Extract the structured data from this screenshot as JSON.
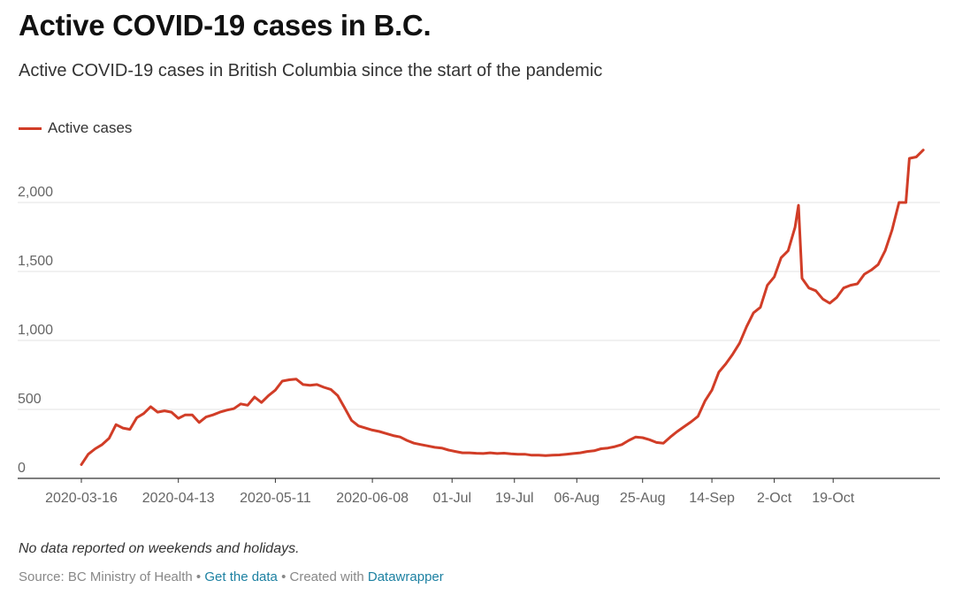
{
  "title": "Active COVID-19 cases in B.C.",
  "subtitle": "Active COVID-19 cases in British Columbia since the start of the pandemic",
  "legend_label": "Active cases",
  "note": "No data reported on weekends and holidays.",
  "source": {
    "prefix": "Source: BC Ministry of Health",
    "sep1": " • ",
    "get_data": "Get the data",
    "sep2": " • Created with ",
    "datawrapper": "Datawrapper"
  },
  "colors": {
    "line": "#d13d27",
    "link": "#1d81a2"
  },
  "chart_data": {
    "type": "line",
    "series": [
      {
        "name": "Active cases",
        "points": [
          [
            "2020-03-16",
            100
          ],
          [
            "2020-03-18",
            175
          ],
          [
            "2020-03-20",
            215
          ],
          [
            "2020-03-22",
            245
          ],
          [
            "2020-03-24",
            290
          ],
          [
            "2020-03-26",
            390
          ],
          [
            "2020-03-28",
            365
          ],
          [
            "2020-03-30",
            355
          ],
          [
            "2020-04-01",
            440
          ],
          [
            "2020-04-03",
            470
          ],
          [
            "2020-04-05",
            520
          ],
          [
            "2020-04-07",
            480
          ],
          [
            "2020-04-09",
            490
          ],
          [
            "2020-04-11",
            480
          ],
          [
            "2020-04-13",
            435
          ],
          [
            "2020-04-15",
            460
          ],
          [
            "2020-04-17",
            460
          ],
          [
            "2020-04-19",
            405
          ],
          [
            "2020-04-21",
            445
          ],
          [
            "2020-04-23",
            460
          ],
          [
            "2020-04-25",
            480
          ],
          [
            "2020-04-27",
            495
          ],
          [
            "2020-04-29",
            505
          ],
          [
            "2020-05-01",
            540
          ],
          [
            "2020-05-03",
            530
          ],
          [
            "2020-05-05",
            590
          ],
          [
            "2020-05-07",
            550
          ],
          [
            "2020-05-09",
            600
          ],
          [
            "2020-05-11",
            640
          ],
          [
            "2020-05-13",
            705
          ],
          [
            "2020-05-15",
            715
          ],
          [
            "2020-05-17",
            720
          ],
          [
            "2020-05-19",
            680
          ],
          [
            "2020-05-21",
            675
          ],
          [
            "2020-05-23",
            680
          ],
          [
            "2020-05-25",
            660
          ],
          [
            "2020-05-27",
            645
          ],
          [
            "2020-05-29",
            600
          ],
          [
            "2020-05-31",
            510
          ],
          [
            "2020-06-02",
            420
          ],
          [
            "2020-06-04",
            380
          ],
          [
            "2020-06-06",
            365
          ],
          [
            "2020-06-08",
            350
          ],
          [
            "2020-06-10",
            340
          ],
          [
            "2020-06-12",
            325
          ],
          [
            "2020-06-14",
            310
          ],
          [
            "2020-06-16",
            300
          ],
          [
            "2020-06-18",
            275
          ],
          [
            "2020-06-20",
            255
          ],
          [
            "2020-06-22",
            245
          ],
          [
            "2020-06-24",
            235
          ],
          [
            "2020-06-26",
            225
          ],
          [
            "2020-06-28",
            220
          ],
          [
            "2020-06-30",
            205
          ],
          [
            "2020-07-02",
            195
          ],
          [
            "2020-07-04",
            185
          ],
          [
            "2020-07-06",
            185
          ],
          [
            "2020-07-08",
            182
          ],
          [
            "2020-07-10",
            180
          ],
          [
            "2020-07-12",
            185
          ],
          [
            "2020-07-14",
            180
          ],
          [
            "2020-07-16",
            183
          ],
          [
            "2020-07-18",
            178
          ],
          [
            "2020-07-20",
            175
          ],
          [
            "2020-07-22",
            175
          ],
          [
            "2020-07-24",
            168
          ],
          [
            "2020-07-26",
            168
          ],
          [
            "2020-07-28",
            165
          ],
          [
            "2020-07-30",
            168
          ],
          [
            "2020-08-01",
            170
          ],
          [
            "2020-08-03",
            175
          ],
          [
            "2020-08-05",
            180
          ],
          [
            "2020-08-07",
            185
          ],
          [
            "2020-08-09",
            195
          ],
          [
            "2020-08-11",
            200
          ],
          [
            "2020-08-13",
            215
          ],
          [
            "2020-08-15",
            220
          ],
          [
            "2020-08-17",
            230
          ],
          [
            "2020-08-19",
            245
          ],
          [
            "2020-08-21",
            275
          ],
          [
            "2020-08-23",
            300
          ],
          [
            "2020-08-25",
            295
          ],
          [
            "2020-08-27",
            280
          ],
          [
            "2020-08-29",
            260
          ],
          [
            "2020-08-31",
            255
          ],
          [
            "2020-09-02",
            300
          ],
          [
            "2020-09-04",
            340
          ],
          [
            "2020-09-06",
            375
          ],
          [
            "2020-09-08",
            410
          ],
          [
            "2020-09-10",
            450
          ],
          [
            "2020-09-12",
            560
          ],
          [
            "2020-09-14",
            640
          ],
          [
            "2020-09-16",
            770
          ],
          [
            "2020-09-18",
            830
          ],
          [
            "2020-09-20",
            900
          ],
          [
            "2020-09-22",
            980
          ],
          [
            "2020-09-24",
            1100
          ],
          [
            "2020-09-26",
            1200
          ],
          [
            "2020-09-28",
            1240
          ],
          [
            "2020-09-30",
            1400
          ],
          [
            "2020-10-02",
            1460
          ],
          [
            "2020-10-04",
            1600
          ],
          [
            "2020-10-06",
            1650
          ],
          [
            "2020-10-08",
            1820
          ],
          [
            "2020-10-09",
            1980
          ],
          [
            "2020-10-10",
            1450
          ],
          [
            "2020-10-12",
            1380
          ],
          [
            "2020-10-14",
            1360
          ],
          [
            "2020-10-16",
            1300
          ],
          [
            "2020-10-18",
            1270
          ],
          [
            "2020-10-20",
            1310
          ],
          [
            "2020-10-22",
            1380
          ],
          [
            "2020-10-24",
            1400
          ],
          [
            "2020-10-26",
            1410
          ],
          [
            "2020-10-28",
            1480
          ],
          [
            "2020-10-30",
            1510
          ],
          [
            "2020-11-01",
            1550
          ],
          [
            "2020-11-03",
            1650
          ],
          [
            "2020-11-05",
            1800
          ],
          [
            "2020-11-07",
            2000
          ],
          [
            "2020-11-09",
            2000
          ],
          [
            "2020-11-10",
            2320
          ],
          [
            "2020-11-12",
            2330
          ],
          [
            "2020-11-14",
            2380
          ]
        ]
      }
    ],
    "x_tick_labels": [
      "2020-03-16",
      "2020-04-13",
      "2020-05-11",
      "2020-06-08",
      "01-Jul",
      "19-Jul",
      "06-Aug",
      "25-Aug",
      "14-Sep",
      "2-Oct",
      "19-Oct"
    ],
    "x_tick_dates": [
      "2020-03-16",
      "2020-04-13",
      "2020-05-11",
      "2020-06-08",
      "2020-07-01",
      "2020-07-19",
      "2020-08-06",
      "2020-08-25",
      "2020-09-14",
      "2020-10-02",
      "2020-10-19"
    ],
    "y_ticks": [
      0,
      500,
      1000,
      1500,
      2000
    ],
    "y_tick_labels": [
      "0",
      "500",
      "1,000",
      "1,500",
      "2,000"
    ],
    "xlim": [
      "2020-03-16",
      "2020-11-15"
    ],
    "ylim": [
      0,
      2450
    ],
    "grid": "horizontal"
  }
}
